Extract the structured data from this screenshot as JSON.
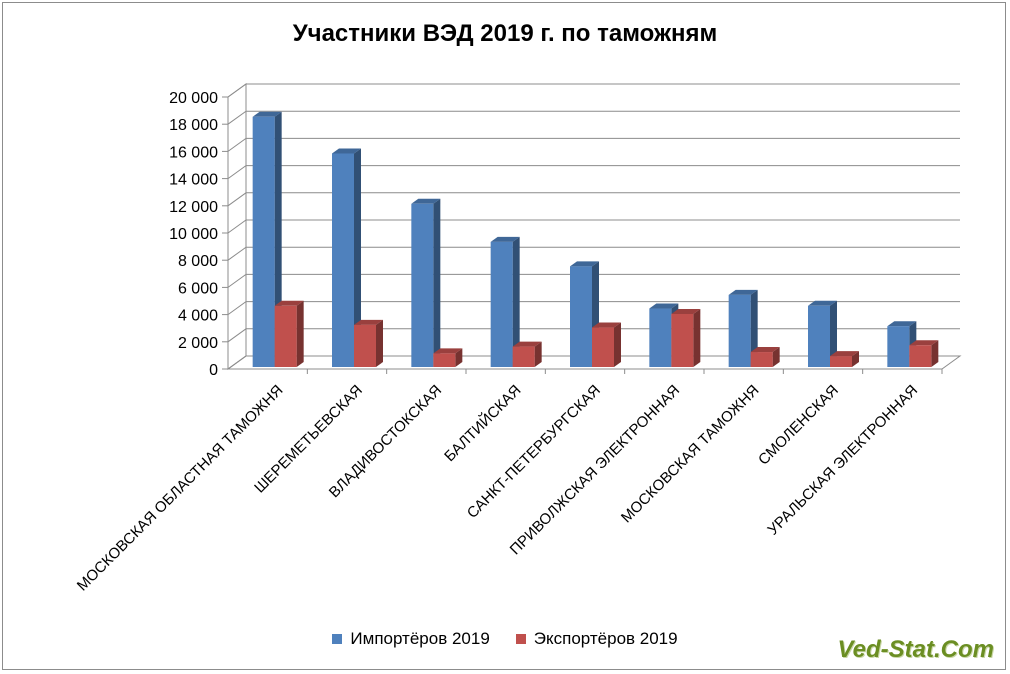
{
  "chart_data": {
    "type": "bar",
    "title": "Участники ВЭД 2019 г. по таможням",
    "categories": [
      "МОСКОВСКАЯ ОБЛАСТНАЯ ТАМОЖНЯ",
      "ШЕРЕМЕТЬЕВСКАЯ",
      "ВЛАДИВОСТОКСКАЯ",
      "БАЛТИЙСКАЯ",
      "САНКТ-ПЕТЕРБУРГСКАЯ",
      "ПРИВОЛЖСКАЯ ЭЛЕКТРОННАЯ",
      "МОСКОВСКАЯ ТАМОЖНЯ",
      "СМОЛЕНСКАЯ",
      "УРАЛЬСКАЯ ЭЛЕКТРОННАЯ"
    ],
    "series": [
      {
        "name": "Импортёров 2019",
        "color": "#4f81bd",
        "values": [
          18400,
          15700,
          12000,
          9200,
          7400,
          4300,
          5300,
          4500,
          3000
        ]
      },
      {
        "name": "Экспортёров 2019",
        "color": "#c0504d",
        "values": [
          4500,
          3100,
          1000,
          1500,
          2900,
          3900,
          1100,
          800,
          1600
        ]
      }
    ],
    "y_ticks": [
      "0",
      "2 000",
      "4 000",
      "6 000",
      "8 000",
      "10 000",
      "12 000",
      "14 000",
      "16 000",
      "18 000",
      "20 000"
    ],
    "ylim": [
      0,
      20000
    ],
    "grid": true,
    "legend_position": "bottom"
  },
  "watermark": "Ved-Stat.Com"
}
